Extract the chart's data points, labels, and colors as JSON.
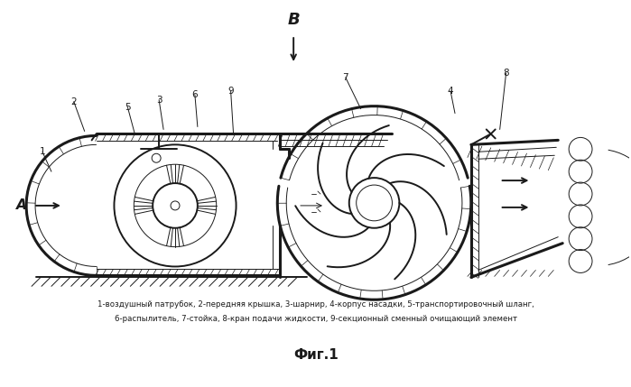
{
  "title": "Фиг.1",
  "caption_line1": "1-воздушный патрубок, 2-передняя крышка, 3-шарнир, 4-корпус насадки, 5-транспортировочный шланг,",
  "caption_line2": "6-распылитель, 7-стойка, 8-кран подачи жидкости, 9-секционный сменный очищающий элемент",
  "label_A": "A",
  "label_B": "B",
  "bg_color": "#ffffff",
  "line_color": "#1a1a1a"
}
